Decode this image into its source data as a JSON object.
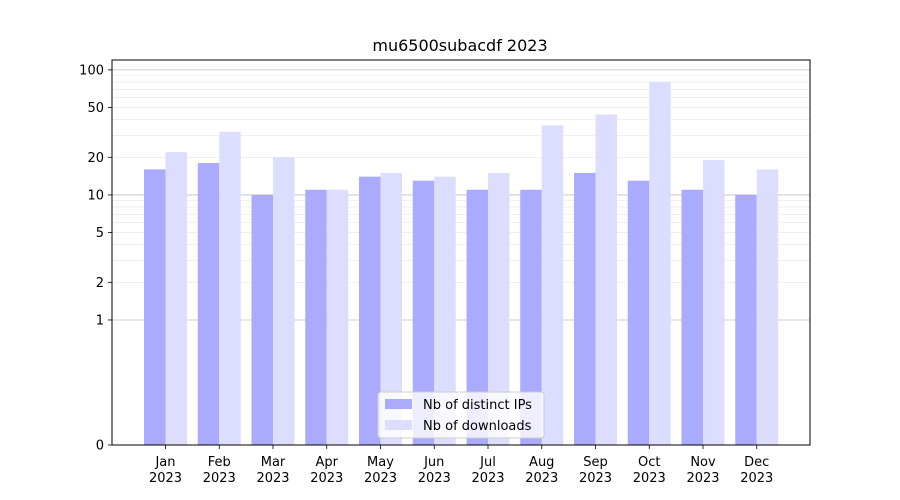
{
  "chart_data": {
    "type": "bar",
    "title": "mu6500subacdf 2023",
    "xlabel": "",
    "ylabel": "",
    "y_scale": "symlog",
    "y_ticks": [
      0,
      1,
      2,
      5,
      10,
      20,
      50,
      100
    ],
    "ylim": [
      0,
      120
    ],
    "grid": true,
    "legend_position": "bottom-center",
    "categories": [
      [
        "Jan",
        "2023"
      ],
      [
        "Feb",
        "2023"
      ],
      [
        "Mar",
        "2023"
      ],
      [
        "Apr",
        "2023"
      ],
      [
        "May",
        "2023"
      ],
      [
        "Jun",
        "2023"
      ],
      [
        "Jul",
        "2023"
      ],
      [
        "Aug",
        "2023"
      ],
      [
        "Sep",
        "2023"
      ],
      [
        "Oct",
        "2023"
      ],
      [
        "Nov",
        "2023"
      ],
      [
        "Dec",
        "2023"
      ]
    ],
    "series": [
      {
        "name": "Nb of distinct IPs",
        "color": "#aaaaff",
        "values": [
          16,
          18,
          10,
          11,
          14,
          13,
          11,
          11,
          15,
          13,
          11,
          10
        ]
      },
      {
        "name": "Nb of downloads",
        "color": "#ddddff",
        "values": [
          22,
          32,
          20,
          11,
          15,
          14,
          15,
          36,
          44,
          80,
          19,
          16
        ]
      }
    ]
  }
}
